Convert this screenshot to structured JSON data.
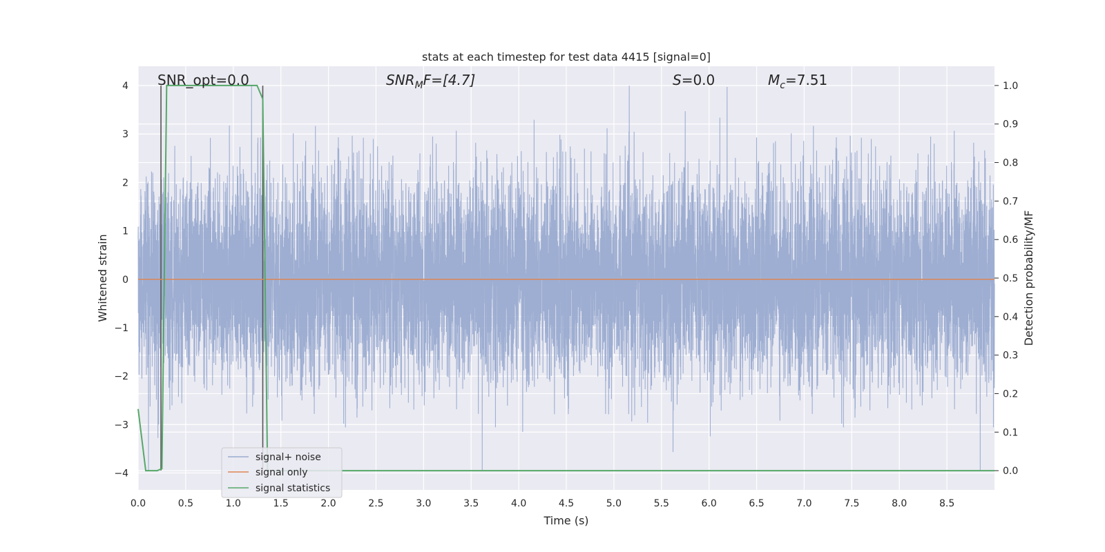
{
  "chart_data": {
    "type": "line",
    "title": "stats at each timestep for test data 4415 [signal=0]",
    "xlabel": "Time (s)",
    "ylabel_left": "Whitened strain",
    "ylabel_right": "Detection probability/MF",
    "xlim": [
      0,
      9.0
    ],
    "ylim_left": [
      -4.35,
      4.4
    ],
    "ylim_right": [
      -0.05,
      1.05
    ],
    "x_ticks": [
      "0.0",
      "0.5",
      "1.0",
      "1.5",
      "2.0",
      "2.5",
      "3.0",
      "3.5",
      "4.0",
      "4.5",
      "5.0",
      "5.5",
      "6.0",
      "6.5",
      "7.0",
      "7.5",
      "8.0",
      "8.5"
    ],
    "y_left_ticks": [
      "4",
      "3",
      "2",
      "1",
      "0",
      "−1",
      "−2",
      "−3",
      "−4"
    ],
    "y_right_ticks": [
      "1.0",
      "0.9",
      "0.8",
      "0.7",
      "0.6",
      "0.5",
      "0.4",
      "0.3",
      "0.2",
      "0.1",
      "0.0"
    ],
    "annotations": {
      "snr_opt": "SNR_opt=0.0",
      "snr_mf_base": "SNR",
      "snr_mf_sub": "M",
      "snr_mf_rest": "F=[4.7]",
      "s_stat_base": "S",
      "s_stat_rest": "=0.0",
      "mc_base": "M",
      "mc_sub": "c",
      "mc_rest": "=7.51"
    },
    "legend": {
      "placement": "lower-left",
      "entries": [
        "signal+ noise",
        "signal only",
        "signal statistics"
      ]
    },
    "grid": true,
    "colors": {
      "noise": "#9aabd0",
      "signal_only": "#dd8452",
      "statistics": "#55a868",
      "vlines": "#555555",
      "background": "#eaeaf2",
      "grid": "#ffffff"
    },
    "series": [
      {
        "name": "signal+ noise",
        "axis": "left",
        "description_values": "dense gaussian noise, amplitude range approx -4 to 4"
      },
      {
        "name": "signal only",
        "axis": "left",
        "x": [
          0,
          9.0
        ],
        "y": [
          0,
          0
        ]
      },
      {
        "name": "signal statistics",
        "axis": "right",
        "x": [
          0.0,
          0.08,
          0.15,
          0.2,
          0.25,
          0.3,
          0.33,
          0.4,
          1.0,
          1.25,
          1.31,
          1.36,
          1.4,
          1.5,
          9.0
        ],
        "y": [
          0.16,
          0.0,
          0.0,
          0.0,
          0.005,
          1.0,
          1.0,
          1.0,
          1.0,
          1.0,
          0.965,
          0.0,
          0.0,
          0.0,
          0.0
        ]
      }
    ],
    "vertical_lines_x": [
      0.24,
      1.31
    ]
  }
}
